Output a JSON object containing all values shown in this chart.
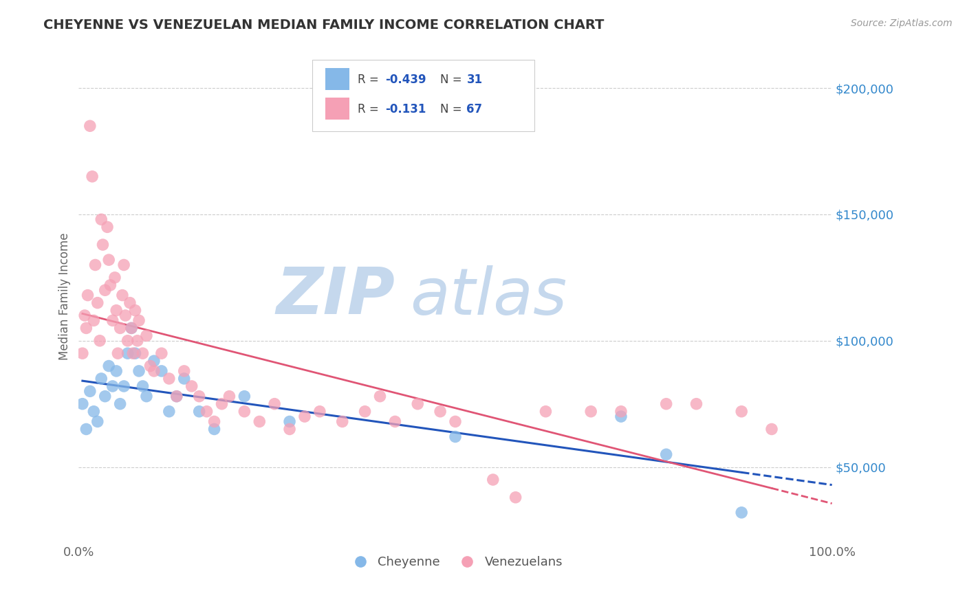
{
  "title": "CHEYENNE VS VENEZUELAN MEDIAN FAMILY INCOME CORRELATION CHART",
  "source_text": "Source: ZipAtlas.com",
  "ylabel": "Median Family Income",
  "xlim": [
    0,
    1.0
  ],
  "ylim": [
    20000,
    215000
  ],
  "yticks": [
    50000,
    100000,
    150000,
    200000
  ],
  "ytick_labels": [
    "$50,000",
    "$100,000",
    "$150,000",
    "$200,000"
  ],
  "grid_color": "#cccccc",
  "background_color": "#ffffff",
  "watermark": "ZIPatlas",
  "watermark_color": "#c5d8ed",
  "blue_color": "#85b8e8",
  "pink_color": "#f5a0b5",
  "blue_line_color": "#2255bb",
  "pink_line_color": "#e05575",
  "title_color": "#333333",
  "axis_label_color": "#666666",
  "ytick_color": "#3388cc",
  "xtick_color": "#666666",
  "cheyenne_x": [
    0.005,
    0.01,
    0.015,
    0.02,
    0.025,
    0.03,
    0.035,
    0.04,
    0.045,
    0.05,
    0.055,
    0.06,
    0.065,
    0.07,
    0.075,
    0.08,
    0.085,
    0.09,
    0.1,
    0.11,
    0.12,
    0.13,
    0.14,
    0.16,
    0.18,
    0.22,
    0.28,
    0.5,
    0.72,
    0.78,
    0.88
  ],
  "cheyenne_y": [
    75000,
    65000,
    80000,
    72000,
    68000,
    85000,
    78000,
    90000,
    82000,
    88000,
    75000,
    82000,
    95000,
    105000,
    95000,
    88000,
    82000,
    78000,
    92000,
    88000,
    72000,
    78000,
    85000,
    72000,
    65000,
    78000,
    68000,
    62000,
    70000,
    55000,
    32000
  ],
  "venezuelan_x": [
    0.005,
    0.008,
    0.01,
    0.012,
    0.015,
    0.018,
    0.02,
    0.022,
    0.025,
    0.028,
    0.03,
    0.032,
    0.035,
    0.038,
    0.04,
    0.042,
    0.045,
    0.048,
    0.05,
    0.052,
    0.055,
    0.058,
    0.06,
    0.062,
    0.065,
    0.068,
    0.07,
    0.072,
    0.075,
    0.078,
    0.08,
    0.085,
    0.09,
    0.095,
    0.1,
    0.11,
    0.12,
    0.13,
    0.14,
    0.15,
    0.16,
    0.17,
    0.18,
    0.19,
    0.2,
    0.22,
    0.24,
    0.26,
    0.28,
    0.3,
    0.32,
    0.35,
    0.38,
    0.4,
    0.42,
    0.45,
    0.48,
    0.5,
    0.55,
    0.58,
    0.62,
    0.68,
    0.72,
    0.78,
    0.82,
    0.88,
    0.92
  ],
  "venezuelan_y": [
    95000,
    110000,
    105000,
    118000,
    185000,
    165000,
    108000,
    130000,
    115000,
    100000,
    148000,
    138000,
    120000,
    145000,
    132000,
    122000,
    108000,
    125000,
    112000,
    95000,
    105000,
    118000,
    130000,
    110000,
    100000,
    115000,
    105000,
    95000,
    112000,
    100000,
    108000,
    95000,
    102000,
    90000,
    88000,
    95000,
    85000,
    78000,
    88000,
    82000,
    78000,
    72000,
    68000,
    75000,
    78000,
    72000,
    68000,
    75000,
    65000,
    70000,
    72000,
    68000,
    72000,
    78000,
    68000,
    75000,
    72000,
    68000,
    45000,
    38000,
    72000,
    72000,
    72000,
    75000,
    75000,
    72000,
    65000
  ]
}
